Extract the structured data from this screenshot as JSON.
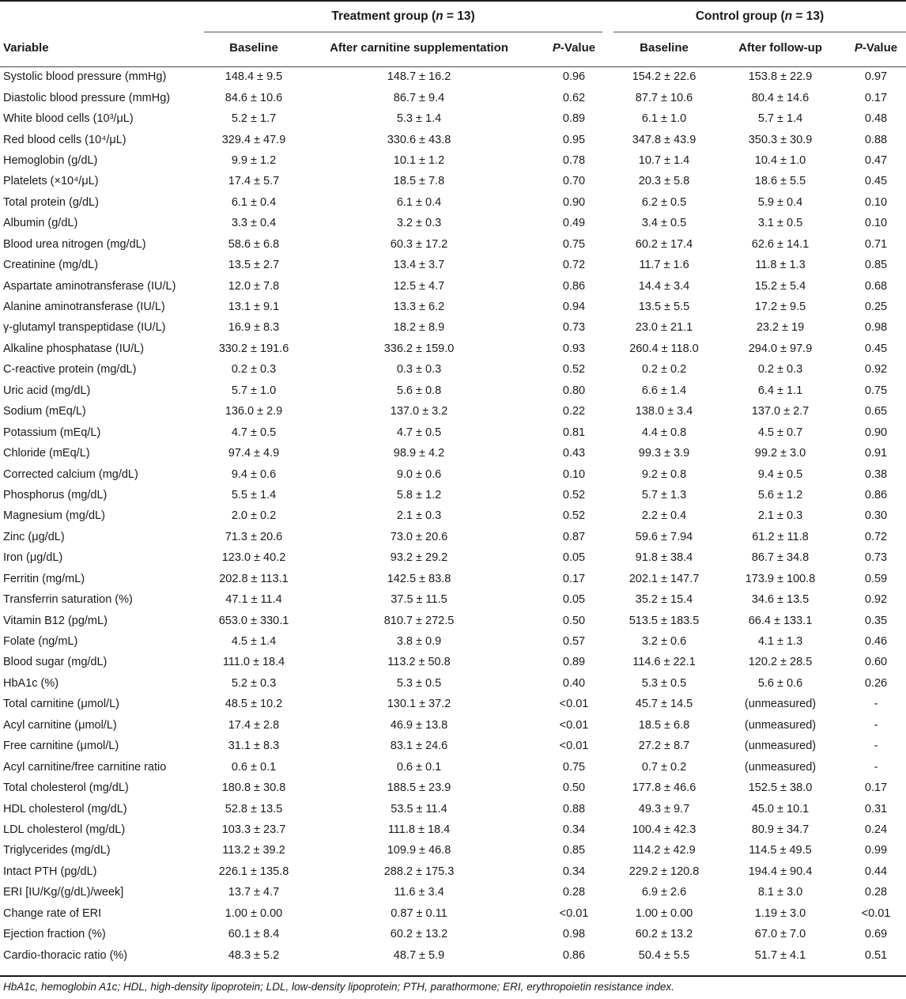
{
  "groups": {
    "treatment": "Treatment group (n = 13)",
    "control": "Control group (n = 13)"
  },
  "headers": [
    "Variable",
    "Baseline",
    "After carnitine supplementation",
    "P-Value",
    "Baseline",
    "After follow-up",
    "P-Value"
  ],
  "rows": [
    [
      "Systolic blood pressure (mmHg)",
      "148.4 ± 9.5",
      "148.7 ± 16.2",
      "0.96",
      "154.2 ± 22.6",
      "153.8 ± 22.9",
      "0.97"
    ],
    [
      "Diastolic blood pressure (mmHg)",
      "84.6 ± 10.6",
      "86.7 ± 9.4",
      "0.62",
      "87.7 ± 10.6",
      "80.4 ± 14.6",
      "0.17"
    ],
    [
      "White blood cells (10³/μL)",
      "5.2 ± 1.7",
      "5.3 ± 1.4",
      "0.89",
      "6.1 ± 1.0",
      "5.7 ± 1.4",
      "0.48"
    ],
    [
      "Red blood cells (10⁴/μL)",
      "329.4 ± 47.9",
      "330.6 ± 43.8",
      "0.95",
      "347.8 ± 43.9",
      "350.3 ± 30.9",
      "0.88"
    ],
    [
      "Hemoglobin (g/dL)",
      "9.9 ± 1.2",
      "10.1 ± 1.2",
      "0.78",
      "10.7 ± 1.4",
      "10.4 ± 1.0",
      "0.47"
    ],
    [
      "Platelets (×10⁴/μL)",
      "17.4 ± 5.7",
      "18.5 ± 7.8",
      "0.70",
      "20.3 ± 5.8",
      "18.6 ± 5.5",
      "0.45"
    ],
    [
      "Total protein (g/dL)",
      "6.1 ± 0.4",
      "6.1 ± 0.4",
      "0.90",
      "6.2 ± 0.5",
      "5.9 ± 0.4",
      "0.10"
    ],
    [
      "Albumin (g/dL)",
      "3.3 ± 0.4",
      "3.2 ± 0.3",
      "0.49",
      "3.4 ± 0.5",
      "3.1 ± 0.5",
      "0.10"
    ],
    [
      "Blood urea nitrogen (mg/dL)",
      "58.6 ± 6.8",
      "60.3 ± 17.2",
      "0.75",
      "60.2 ± 17.4",
      "62.6 ± 14.1",
      "0.71"
    ],
    [
      "Creatinine (mg/dL)",
      "13.5 ± 2.7",
      "13.4 ± 3.7",
      "0.72",
      "11.7 ± 1.6",
      "11.8 ± 1.3",
      "0.85"
    ],
    [
      "Aspartate aminotransferase (IU/L)",
      "12.0 ± 7.8",
      "12.5 ± 4.7",
      "0.86",
      "14.4 ± 3.4",
      "15.2 ± 5.4",
      "0.68"
    ],
    [
      "Alanine aminotransferase (IU/L)",
      "13.1 ± 9.1",
      "13.3 ± 6.2",
      "0.94",
      "13.5 ± 5.5",
      "17.2 ± 9.5",
      "0.25"
    ],
    [
      "γ-glutamyl transpeptidase (IU/L)",
      "16.9 ± 8.3",
      "18.2 ± 8.9",
      "0.73",
      "23.0 ± 21.1",
      "23.2 ± 19",
      "0.98"
    ],
    [
      "Alkaline phosphatase (IU/L)",
      "330.2 ± 191.6",
      "336.2 ± 159.0",
      "0.93",
      "260.4 ± 118.0",
      "294.0 ± 97.9",
      "0.45"
    ],
    [
      "C-reactive protein (mg/dL)",
      "0.2 ± 0.3",
      "0.3 ± 0.3",
      "0.52",
      "0.2 ± 0.2",
      "0.2 ± 0.3",
      "0.92"
    ],
    [
      "Uric acid (mg/dL)",
      "5.7 ± 1.0",
      "5.6 ± 0.8",
      "0.80",
      "6.6 ± 1.4",
      "6.4 ± 1.1",
      "0.75"
    ],
    [
      "Sodium (mEq/L)",
      "136.0 ± 2.9",
      "137.0 ± 3.2",
      "0.22",
      "138.0 ± 3.4",
      "137.0 ± 2.7",
      "0.65"
    ],
    [
      "Potassium (mEq/L)",
      "4.7 ± 0.5",
      "4.7 ± 0.5",
      "0.81",
      "4.4 ± 0.8",
      "4.5 ± 0.7",
      "0.90"
    ],
    [
      "Chloride (mEq/L)",
      "97.4 ± 4.9",
      "98.9 ± 4.2",
      "0.43",
      "99.3 ± 3.9",
      "99.2 ± 3.0",
      "0.91"
    ],
    [
      "Corrected calcium (mg/dL)",
      "9.4 ± 0.6",
      "9.0 ± 0.6",
      "0.10",
      "9.2 ± 0.8",
      "9.4 ± 0.5",
      "0.38"
    ],
    [
      "Phosphorus (mg/dL)",
      "5.5 ± 1.4",
      "5.8 ± 1.2",
      "0.52",
      "5.7 ± 1.3",
      "5.6 ± 1.2",
      "0.86"
    ],
    [
      "Magnesium (mg/dL)",
      "2.0 ± 0.2",
      "2.1 ± 0.3",
      "0.52",
      "2.2 ± 0.4",
      "2.1 ± 0.3",
      "0.30"
    ],
    [
      "Zinc (μg/dL)",
      "71.3 ± 20.6",
      "73.0 ± 20.6",
      "0.87",
      "59.6 ± 7.94",
      "61.2 ± 11.8",
      "0.72"
    ],
    [
      "Iron (μg/dL)",
      "123.0 ± 40.2",
      "93.2 ± 29.2",
      "0.05",
      "91.8 ± 38.4",
      "86.7 ± 34.8",
      "0.73"
    ],
    [
      "Ferritin (mg/mL)",
      "202.8 ± 113.1",
      "142.5 ± 83.8",
      "0.17",
      "202.1 ± 147.7",
      "173.9 ± 100.8",
      "0.59"
    ],
    [
      "Transferrin saturation (%)",
      "47.1 ± 11.4",
      "37.5 ± 11.5",
      "0.05",
      "35.2 ± 15.4",
      "34.6 ± 13.5",
      "0.92"
    ],
    [
      "Vitamin B12 (pg/mL)",
      "653.0 ± 330.1",
      "810.7 ± 272.5",
      "0.50",
      "513.5 ± 183.5",
      "66.4 ± 133.1",
      "0.35"
    ],
    [
      "Folate (ng/mL)",
      "4.5 ± 1.4",
      "3.8 ± 0.9",
      "0.57",
      "3.2 ± 0.6",
      "4.1 ± 1.3",
      "0.46"
    ],
    [
      "Blood sugar (mg/dL)",
      "111.0 ± 18.4",
      "113.2 ± 50.8",
      "0.89",
      "114.6 ± 22.1",
      "120.2 ± 28.5",
      "0.60"
    ],
    [
      "HbA1c (%)",
      "5.2 ± 0.3",
      "5.3 ± 0.5",
      "0.40",
      "5.3 ± 0.5",
      "5.6 ± 0.6",
      "0.26"
    ],
    [
      "Total carnitine (μmol/L)",
      "48.5 ± 10.2",
      "130.1 ± 37.2",
      "<0.01",
      "45.7 ± 14.5",
      "(unmeasured)",
      "-"
    ],
    [
      "Acyl carnitine (μmol/L)",
      "17.4 ± 2.8",
      "46.9 ± 13.8",
      "<0.01",
      "18.5 ± 6.8",
      "(unmeasured)",
      "-"
    ],
    [
      "Free carnitine (μmol/L)",
      "31.1 ± 8.3",
      "83.1 ± 24.6",
      "<0.01",
      "27.2 ± 8.7",
      "(unmeasured)",
      "-"
    ],
    [
      "Acyl carnitine/free carnitine ratio",
      "0.6 ± 0.1",
      "0.6 ± 0.1",
      "0.75",
      "0.7 ± 0.2",
      "(unmeasured)",
      "-"
    ],
    [
      "Total cholesterol (mg/dL)",
      "180.8 ± 30.8",
      "188.5 ± 23.9",
      "0.50",
      "177.8 ± 46.6",
      "152.5 ± 38.0",
      "0.17"
    ],
    [
      "HDL cholesterol (mg/dL)",
      "52.8 ± 13.5",
      "53.5 ± 11.4",
      "0.88",
      "49.3 ± 9.7",
      "45.0 ± 10.1",
      "0.31"
    ],
    [
      "LDL cholesterol (mg/dL)",
      "103.3 ± 23.7",
      "111.8 ± 18.4",
      "0.34",
      "100.4 ± 42.3",
      "80.9 ± 34.7",
      "0.24"
    ],
    [
      "Triglycerides (mg/dL)",
      "113.2 ± 39.2",
      "109.9 ± 46.8",
      "0.85",
      "114.2 ± 42.9",
      "114.5 ± 49.5",
      "0.99"
    ],
    [
      "Intact PTH (pg/dL)",
      "226.1 ± 135.8",
      "288.2 ± 175.3",
      "0.34",
      "229.2 ± 120.8",
      "194.4 ± 90.4",
      "0.44"
    ],
    [
      "ERI [IU/Kg/(g/dL)/week]",
      "13.7 ± 4.7",
      "11.6 ± 3.4",
      "0.28",
      "6.9 ± 2.6",
      "8.1 ± 3.0",
      "0.28"
    ],
    [
      "Change rate of ERI",
      "1.00 ± 0.00",
      "0.87 ± 0.11",
      "<0.01",
      "1.00 ± 0.00",
      "1.19 ± 3.0",
      "<0.01"
    ],
    [
      "Ejection fraction (%)",
      "60.1 ± 8.4",
      "60.2 ± 13.2",
      "0.98",
      "60.2 ± 13.2",
      "67.0 ± 7.0",
      "0.69"
    ],
    [
      "Cardio-thoracic ratio (%)",
      "48.3 ± 5.2",
      "48.7 ± 5.9",
      "0.86",
      "50.4 ± 5.5",
      "51.7 ± 4.1",
      "0.51"
    ]
  ],
  "footnote": "HbA1c, hemoglobin A1c; HDL, high-density lipoprotein; LDL, low-density lipoprotein; PTH, parathormone; ERI, erythropoietin resistance index."
}
